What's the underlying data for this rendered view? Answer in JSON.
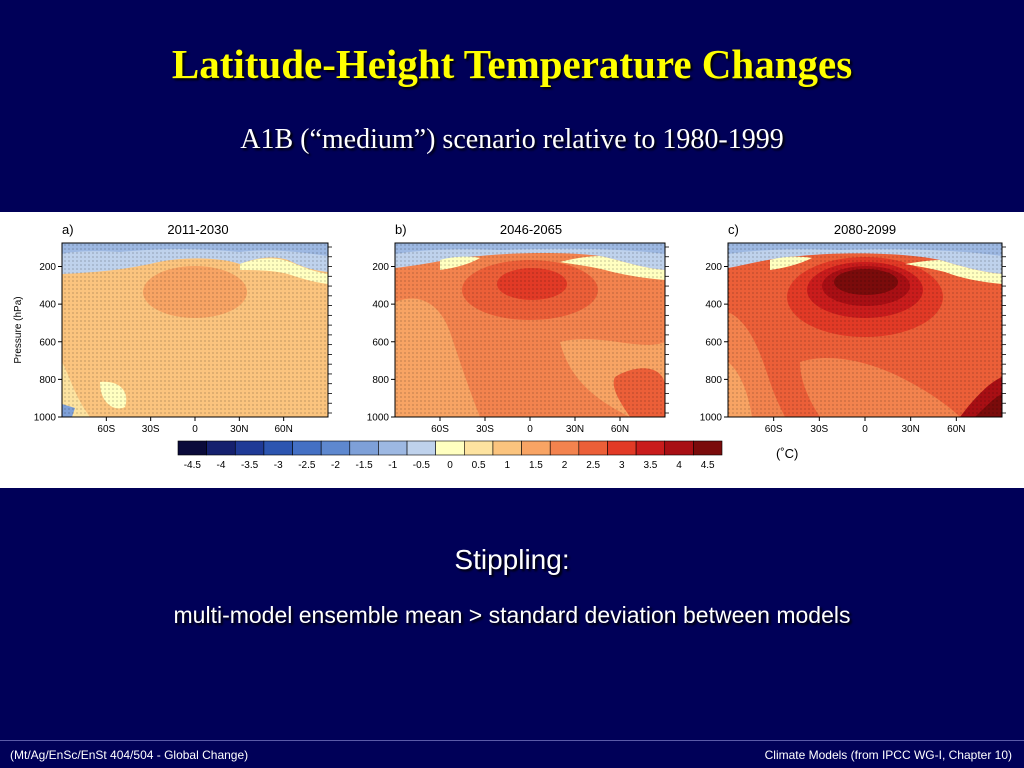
{
  "slide": {
    "title": "Latitude-Height Temperature Changes",
    "subtitle": "A1B (“medium”) scenario relative to 1980-1999",
    "stippling_heading": "Stippling:",
    "stippling_text": "multi-model ensemble mean > standard deviation between models",
    "footer_left": "(Mt/Ag/EnSc/EnSt 404/504 - Global Change)",
    "footer_right": "Climate Models  (from IPCC WG-I, Chapter 10)"
  },
  "figure": {
    "ylabel": "Pressure (hPa)",
    "y_ticks": [
      "200",
      "400",
      "600",
      "800",
      "1000"
    ],
    "x_ticks": [
      "60S",
      "30S",
      "0",
      "30N",
      "60N"
    ],
    "panels": [
      {
        "label": "a)",
        "period": "2011-2030"
      },
      {
        "label": "b)",
        "period": "2046-2065"
      },
      {
        "label": "c)",
        "period": "2080-2099"
      }
    ],
    "colorbar": {
      "unit": "(˚C)",
      "labels": [
        "-4.5",
        "-4",
        "-3.5",
        "-3",
        "-2.5",
        "-2",
        "-1.5",
        "-1",
        "-0.5",
        "0",
        "0.5",
        "1",
        "1.5",
        "2",
        "2.5",
        "3",
        "3.5",
        "4",
        "4.5"
      ],
      "colors": [
        "#0a0a3a",
        "#15206e",
        "#1f3a96",
        "#2c55b0",
        "#4470c4",
        "#5e88cf",
        "#7ea0d8",
        "#9db8e2",
        "#bfd2ec",
        "#ffffc0",
        "#fde3a0",
        "#fbc47e",
        "#f8a464",
        "#f3834e",
        "#ec5f38",
        "#e23a26",
        "#c91c1c",
        "#a80f14",
        "#7a0b0b"
      ]
    }
  }
}
